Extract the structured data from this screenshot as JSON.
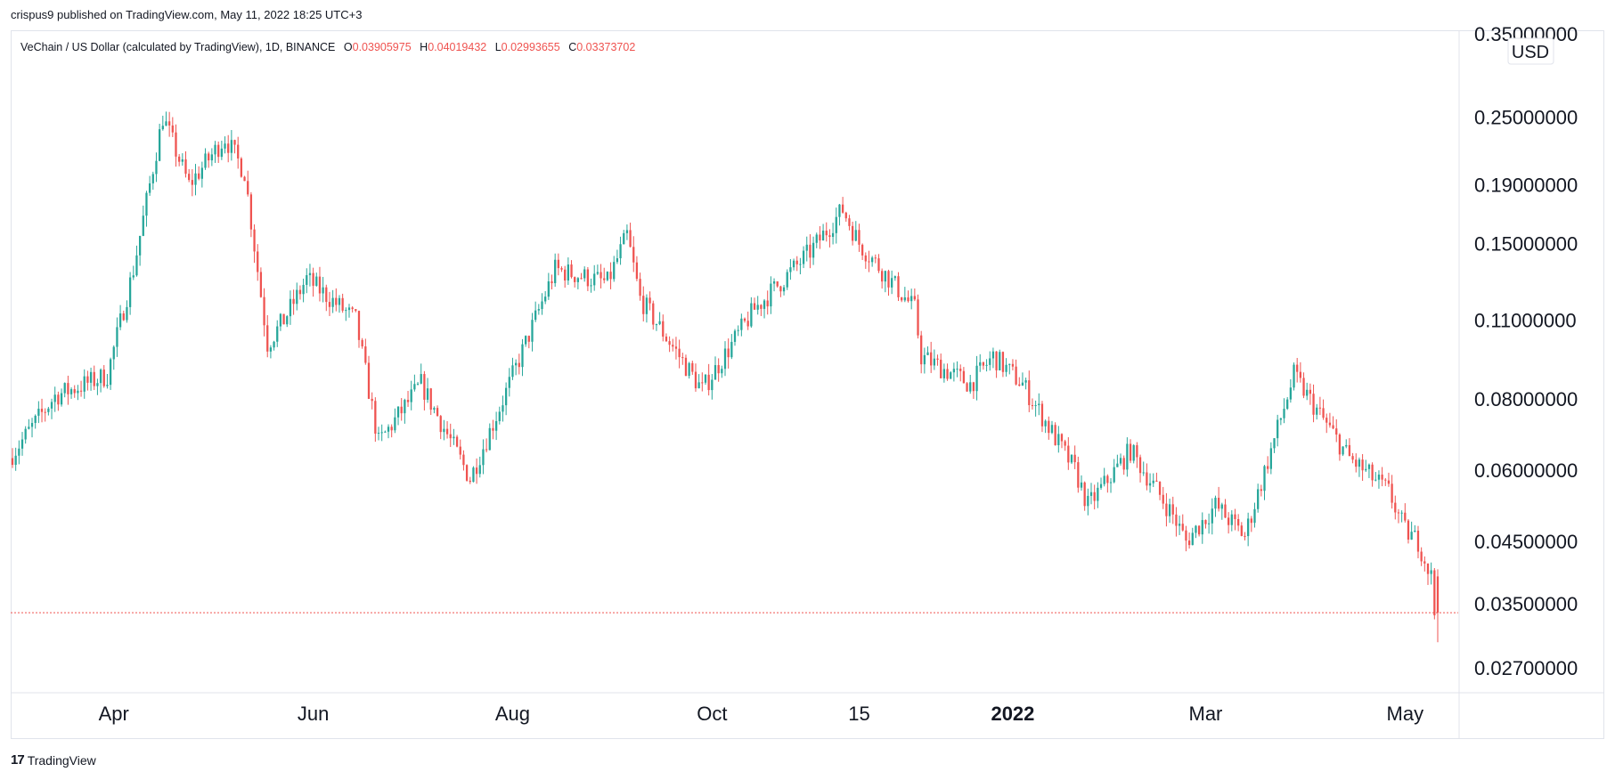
{
  "header": {
    "text": "crispus9 published on TradingView.com, May 11, 2022 18:25 UTC+3"
  },
  "legend": {
    "title": "VeChain / US Dollar (calculated by TradingView), 1D, BINANCE",
    "o_label": "O",
    "o_value": "0.03905975",
    "h_label": "H",
    "h_value": "0.04019432",
    "l_label": "L",
    "l_value": "0.02993655",
    "c_label": "C",
    "c_value": "0.03373702"
  },
  "footer": {
    "brand": "TradingView",
    "logo": "17"
  },
  "colors": {
    "up": "#26a69a",
    "down": "#ef5350",
    "grid": "#e0e3eb",
    "text": "#131722"
  },
  "chart_data": {
    "type": "candlestick",
    "title": "VeChain / US Dollar (calculated by TradingView), 1D, BINANCE",
    "currency": "USD",
    "y_scale": "log",
    "ylim": [
      0.0245,
      0.355
    ],
    "y_ticks": [
      "0.35000000",
      "0.25000000",
      "0.19000000",
      "0.15000000",
      "0.11000000",
      "0.08000000",
      "0.06000000",
      "0.04500000",
      "0.03500000",
      "0.02700000"
    ],
    "x_ticks": [
      "Apr",
      "Jun",
      "Aug",
      "Oct",
      "15",
      "2022",
      "Mar",
      "May"
    ],
    "x_tick_dates": [
      "2021-04-01",
      "2021-06-01",
      "2021-08-01",
      "2021-10-01",
      "2021-11-15",
      "2022-01-01",
      "2022-03-01",
      "2022-05-01"
    ],
    "date_range": [
      "2021-03-01",
      "2022-05-11"
    ],
    "last_close": 0.03373702,
    "last_ohlc": {
      "date": "2022-05-11",
      "open": 0.03905975,
      "high": 0.04019432,
      "low": 0.02993655,
      "close": 0.03373702
    },
    "price_path": [
      {
        "date": "2021-03-01",
        "price": 0.063
      },
      {
        "date": "2021-03-15",
        "price": 0.081
      },
      {
        "date": "2021-03-31",
        "price": 0.088
      },
      {
        "date": "2021-04-08",
        "price": 0.135
      },
      {
        "date": "2021-04-17",
        "price": 0.25
      },
      {
        "date": "2021-04-25",
        "price": 0.19
      },
      {
        "date": "2021-05-06",
        "price": 0.23
      },
      {
        "date": "2021-05-12",
        "price": 0.2
      },
      {
        "date": "2021-05-19",
        "price": 0.1
      },
      {
        "date": "2021-05-24",
        "price": 0.11
      },
      {
        "date": "2021-05-31",
        "price": 0.13
      },
      {
        "date": "2021-06-15",
        "price": 0.11
      },
      {
        "date": "2021-06-22",
        "price": 0.067
      },
      {
        "date": "2021-07-05",
        "price": 0.085
      },
      {
        "date": "2021-07-20",
        "price": 0.058
      },
      {
        "date": "2021-08-01",
        "price": 0.085
      },
      {
        "date": "2021-08-15",
        "price": 0.135
      },
      {
        "date": "2021-08-31",
        "price": 0.128
      },
      {
        "date": "2021-09-06",
        "price": 0.155
      },
      {
        "date": "2021-09-10",
        "price": 0.12
      },
      {
        "date": "2021-09-29",
        "price": 0.083
      },
      {
        "date": "2021-10-15",
        "price": 0.115
      },
      {
        "date": "2021-11-01",
        "price": 0.145
      },
      {
        "date": "2021-11-11",
        "price": 0.172
      },
      {
        "date": "2021-11-16",
        "price": 0.15
      },
      {
        "date": "2021-12-03",
        "price": 0.115
      },
      {
        "date": "2021-12-05",
        "price": 0.095
      },
      {
        "date": "2021-12-20",
        "price": 0.085
      },
      {
        "date": "2021-12-27",
        "price": 0.095
      },
      {
        "date": "2022-01-05",
        "price": 0.085
      },
      {
        "date": "2022-01-21",
        "price": 0.06
      },
      {
        "date": "2022-01-25",
        "price": 0.052
      },
      {
        "date": "2022-02-07",
        "price": 0.065
      },
      {
        "date": "2022-02-20",
        "price": 0.05
      },
      {
        "date": "2022-02-24",
        "price": 0.045
      },
      {
        "date": "2022-03-05",
        "price": 0.052
      },
      {
        "date": "2022-03-14",
        "price": 0.046
      },
      {
        "date": "2022-03-29",
        "price": 0.088
      },
      {
        "date": "2022-04-06",
        "price": 0.075
      },
      {
        "date": "2022-04-15",
        "price": 0.063
      },
      {
        "date": "2022-04-27",
        "price": 0.055
      },
      {
        "date": "2022-05-02",
        "price": 0.047
      },
      {
        "date": "2022-05-06",
        "price": 0.045
      },
      {
        "date": "2022-05-10",
        "price": 0.039
      },
      {
        "date": "2022-05-11",
        "price": 0.0337
      }
    ]
  }
}
